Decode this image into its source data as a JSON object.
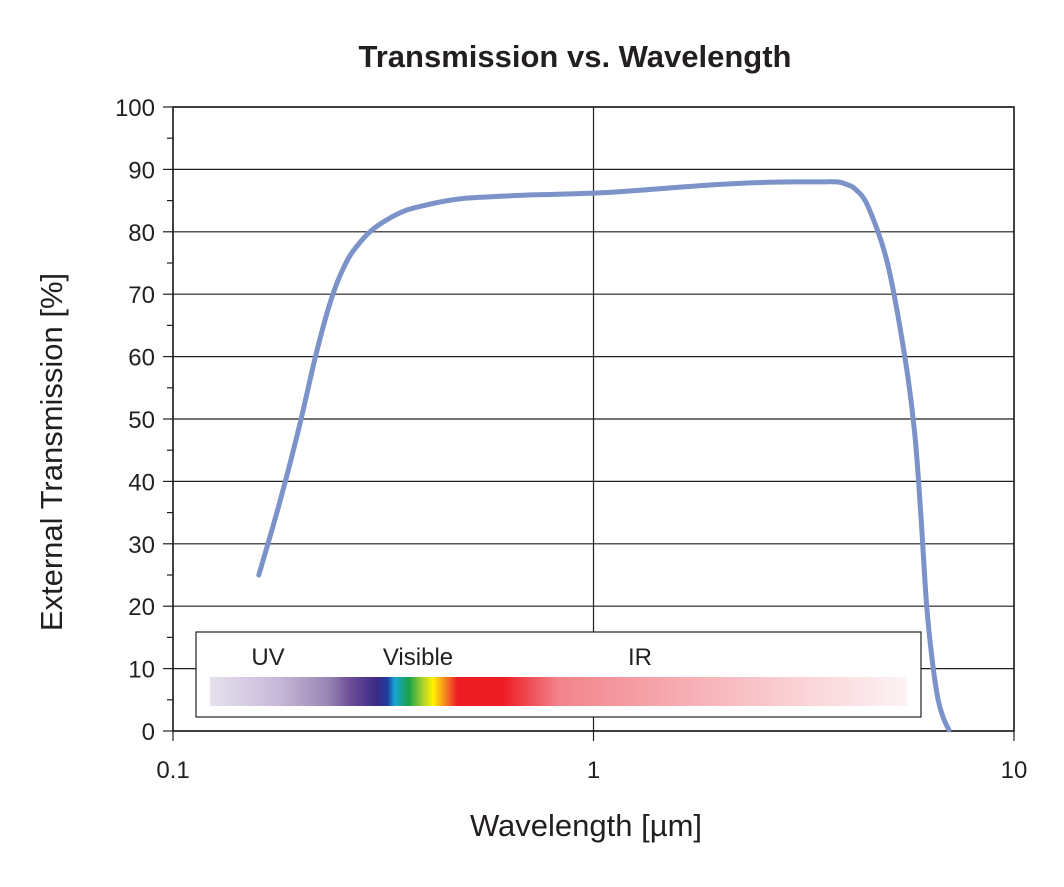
{
  "chart_data": {
    "type": "line",
    "title": "Transmission vs. Wavelength",
    "xlabel": "Wavelength [µm]",
    "ylabel": "External Transmission [%]",
    "xscale": "log",
    "xlim": [
      0.1,
      10
    ],
    "ylim": [
      0,
      100
    ],
    "x_ticks": [
      0.1,
      1,
      10
    ],
    "x_tick_labels": [
      "0.1",
      "1",
      "10"
    ],
    "y_ticks": [
      0,
      10,
      20,
      30,
      40,
      50,
      60,
      70,
      80,
      90,
      100
    ],
    "y_tick_labels": [
      "0",
      "10",
      "20",
      "30",
      "40",
      "50",
      "60",
      "70",
      "80",
      "90",
      "100"
    ],
    "grid": true,
    "series": [
      {
        "color": "#7b93c9",
        "x": [
          0.16,
          0.18,
          0.2,
          0.22,
          0.24,
          0.26,
          0.28,
          0.3,
          0.33,
          0.36,
          0.4,
          0.45,
          0.5,
          0.6,
          0.7,
          0.8,
          1.0,
          1.2,
          1.5,
          2.0,
          2.5,
          3.0,
          3.5,
          3.8,
          4.0,
          4.2,
          4.5,
          5.0,
          5.5,
          5.8,
          6.0,
          6.2,
          6.4,
          6.6,
          6.8,
          7.0
        ],
        "y": [
          25,
          37,
          49,
          61,
          70,
          75.5,
          78.5,
          80.5,
          82.3,
          83.5,
          84.3,
          85.0,
          85.4,
          85.7,
          85.9,
          86.0,
          86.2,
          86.5,
          87.0,
          87.6,
          87.9,
          88.0,
          88.0,
          88.0,
          87.6,
          86.8,
          84.0,
          75.0,
          60.0,
          48.0,
          35.0,
          20.0,
          11.0,
          5.0,
          2.0,
          0.2
        ]
      }
    ],
    "spectrum_legend": {
      "labels": [
        "UV",
        "Visible",
        "IR"
      ]
    }
  }
}
